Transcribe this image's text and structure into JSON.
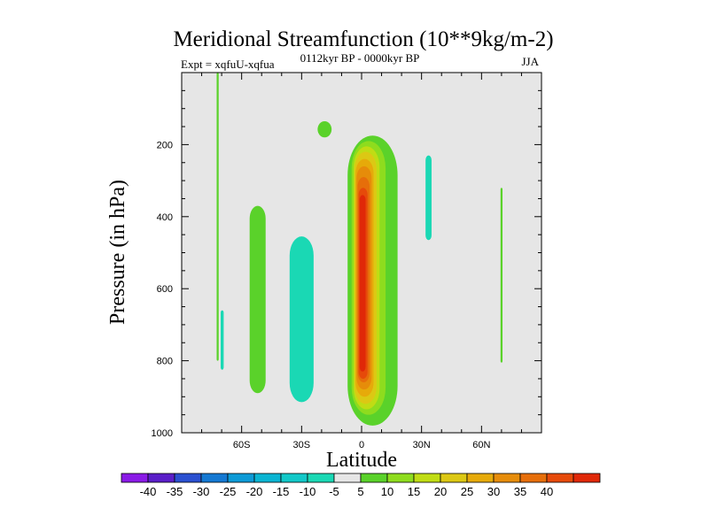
{
  "chart_data": {
    "type": "contour",
    "title": "Meridional Streamfunction (10**9kg/m-2)",
    "left_string": "Expt = xqfuU-xqfua",
    "center_string": "0112kyr BP - 0000kyr BP",
    "right_string": "JJA",
    "xlabel": "Latitude",
    "ylabel": "Pressure (in hPa)",
    "xlim": [
      -90,
      90
    ],
    "ylim": [
      1000,
      0
    ],
    "x_ticks": [
      {
        "value": -60,
        "label": "60S"
      },
      {
        "value": -30,
        "label": "30S"
      },
      {
        "value": 0,
        "label": "0"
      },
      {
        "value": 30,
        "label": "30N"
      },
      {
        "value": 60,
        "label": "60N"
      }
    ],
    "y_ticks": [
      {
        "value": 200,
        "label": "200"
      },
      {
        "value": 400,
        "label": "400"
      },
      {
        "value": 600,
        "label": "600"
      },
      {
        "value": 800,
        "label": "800"
      },
      {
        "value": 1000,
        "label": "1000"
      }
    ],
    "background_color": "#e6e6e6",
    "colorbar": {
      "colors": [
        "#8a1ae6",
        "#5a1ec8",
        "#2a50d0",
        "#1478d2",
        "#0c9ad6",
        "#0ab4d2",
        "#12c8c8",
        "#1ad8b4",
        "#e6e6e6",
        "#5ad22a",
        "#8edc1e",
        "#c0dc14",
        "#dcc814",
        "#e6aa0a",
        "#e68c0a",
        "#e66e0a",
        "#e64a0a",
        "#e02808"
      ],
      "labels": [
        "-40",
        "-35",
        "-30",
        "-25",
        "-20",
        "-15",
        "-10",
        "-5",
        "5",
        "10",
        "15",
        "20",
        "25",
        "30",
        "35",
        "40"
      ]
    },
    "cells": [
      {
        "value": 5,
        "lat": [
          -7,
          18
        ],
        "p": [
          175,
          980
        ],
        "color": "#5ad22a",
        "name": "main-cell-level-5"
      },
      {
        "value": 10,
        "lat": [
          -5,
          12
        ],
        "p": [
          190,
          950
        ],
        "color": "#8edc1e",
        "name": "main-cell-level-10"
      },
      {
        "value": 15,
        "lat": [
          -4,
          9
        ],
        "p": [
          205,
          935
        ],
        "color": "#c0dc14",
        "name": "main-cell-level-15"
      },
      {
        "value": 20,
        "lat": [
          -3.5,
          7.5
        ],
        "p": [
          220,
          920
        ],
        "color": "#dcc814",
        "name": "main-cell-level-20"
      },
      {
        "value": 25,
        "lat": [
          -3,
          6
        ],
        "p": [
          240,
          900
        ],
        "color": "#e6aa0a",
        "name": "main-cell-level-25"
      },
      {
        "value": 30,
        "lat": [
          -2.5,
          5
        ],
        "p": [
          260,
          880
        ],
        "color": "#e68c0a",
        "name": "main-cell-level-30"
      },
      {
        "value": 35,
        "lat": [
          -2,
          4
        ],
        "p": [
          290,
          860
        ],
        "color": "#e66e0a",
        "name": "main-cell-level-35"
      },
      {
        "value": 40,
        "lat": [
          -1.5,
          3
        ],
        "p": [
          320,
          850
        ],
        "color": "#e64a0a",
        "name": "main-cell-level-40"
      },
      {
        "value": 45,
        "lat": [
          -1,
          2
        ],
        "p": [
          340,
          830
        ],
        "color": "#e02808",
        "name": "main-cell-level-45"
      },
      {
        "value": 5,
        "lat": [
          -56,
          -48
        ],
        "p": [
          370,
          890
        ],
        "color": "#5ad22a",
        "name": "sh-midlat-cell-5"
      },
      {
        "value": -5,
        "lat": [
          -36,
          -24
        ],
        "p": [
          455,
          915
        ],
        "color": "#1ad8b4",
        "name": "sh-ferrel-cell-minus5"
      },
      {
        "value": 5,
        "lat": [
          -22,
          -15
        ],
        "p": [
          135,
          180
        ],
        "color": "#5ad22a",
        "name": "upper-small-cell-5"
      },
      {
        "value": 5,
        "lat": [
          -72.5,
          -71.5
        ],
        "p": [
          0,
          800
        ],
        "color": "#5ad22a",
        "name": "sh-polar-thin-cell-5"
      },
      {
        "value": -5,
        "lat": [
          -70.5,
          -69
        ],
        "p": [
          660,
          825
        ],
        "color": "#1ad8b4",
        "name": "sh-polar-small-cell-minus5"
      },
      {
        "value": -5,
        "lat": [
          32,
          35
        ],
        "p": [
          230,
          465
        ],
        "color": "#1ad8b4",
        "name": "nh-subtrop-cell-minus5"
      },
      {
        "value": 5,
        "lat": [
          69.5,
          70.5
        ],
        "p": [
          320,
          805
        ],
        "color": "#5ad22a",
        "name": "nh-polar-thin-cell-5"
      }
    ]
  }
}
